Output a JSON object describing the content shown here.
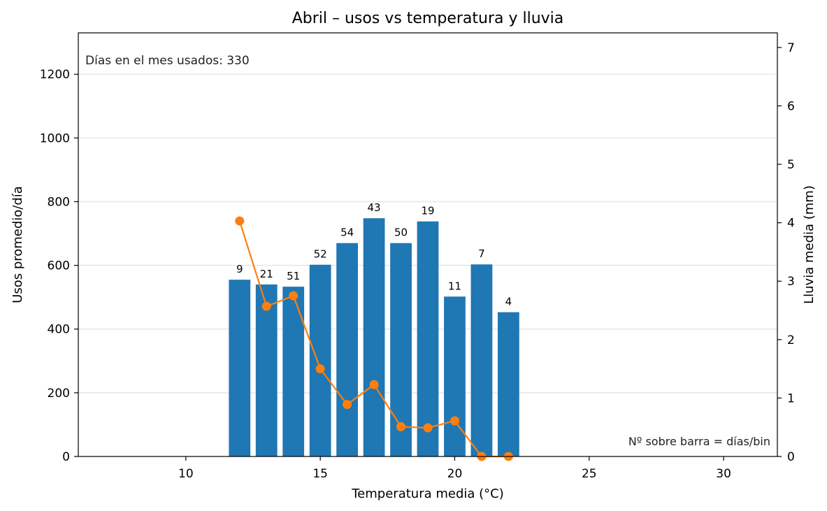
{
  "chart_data": {
    "type": "bar",
    "title": "Abril – usos vs temperatura y lluvia",
    "xlabel": "Temperatura media (°C)",
    "ylabel": "Usos promedio/día",
    "y2label": "Lluvia media (mm)",
    "xlim": [
      6,
      32
    ],
    "ylim": [
      0,
      1330
    ],
    "y2lim": [
      0,
      7.25
    ],
    "xticks": [
      10,
      15,
      20,
      25,
      30
    ],
    "yticks": [
      0,
      200,
      400,
      600,
      800,
      1000,
      1200
    ],
    "y2ticks": [
      0,
      1,
      2,
      3,
      4,
      5,
      6,
      7
    ],
    "grid": "horizontal",
    "annotation_top_left": "Días en el mes usados: 330",
    "annotation_bottom_right": "Nº sobre barra = días/bin",
    "colors": {
      "bars": "#1f77b4",
      "line": "#ff7f0e",
      "grid": "#e6e6e6"
    },
    "series": [
      {
        "type": "bar",
        "axis": "left",
        "x": [
          12,
          13,
          14,
          15,
          16,
          17,
          18,
          19,
          20,
          21,
          22
        ],
        "values": [
          555,
          540,
          533,
          602,
          670,
          748,
          670,
          738,
          502,
          603,
          453
        ],
        "labels": [
          "9",
          "21",
          "51",
          "52",
          "54",
          "43",
          "50",
          "19",
          "11",
          "7",
          "4"
        ]
      },
      {
        "type": "line",
        "axis": "right",
        "x": [
          12,
          13,
          14,
          15,
          16,
          17,
          18,
          19,
          20,
          21,
          22
        ],
        "values": [
          4.03,
          2.57,
          2.75,
          1.5,
          0.89,
          1.23,
          0.51,
          0.49,
          0.61,
          0.0,
          0.0
        ]
      }
    ]
  }
}
